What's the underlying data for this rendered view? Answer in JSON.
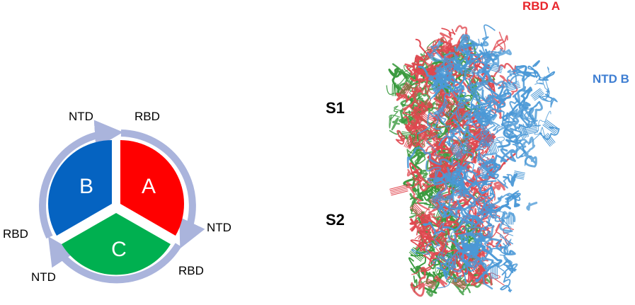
{
  "schematic": {
    "subunits": [
      {
        "letter": "A",
        "color": "#ff0000"
      },
      {
        "letter": "B",
        "color": "#0563c1"
      },
      {
        "letter": "C",
        "color": "#00b050"
      }
    ],
    "arrow_color": "#aab4dc",
    "domain_labels": {
      "top_ntd": "NTD",
      "top_rbd": "RBD",
      "right_ntd": "NTD",
      "right_rbd": "RBD",
      "left_rbd": "RBD",
      "left_ntd": "NTD"
    }
  },
  "structure": {
    "region_labels": {
      "s1": "S1",
      "s2": "S2"
    },
    "callouts": {
      "rbd_a": {
        "text": "RBD A",
        "color": "#e8252b"
      },
      "ntd_b": {
        "text": "NTD B",
        "color": "#3e7ed2"
      }
    },
    "chain_colors": {
      "red": "#e0474f",
      "green": "#3a9a3e",
      "blue": "#4a98d6"
    }
  }
}
